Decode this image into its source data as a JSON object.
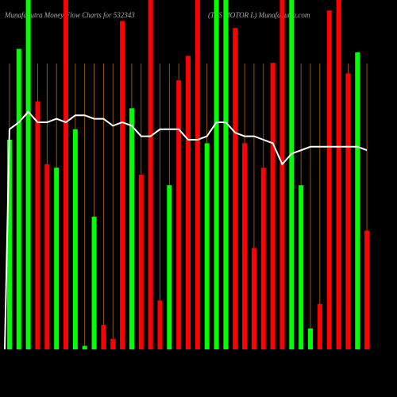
{
  "chart_data": {
    "type": "bar",
    "title": "MunafaSutra  Money Flow  Charts for 532343",
    "subtitle": "(TVS MOTOR L) MunafaSutra.com",
    "ylim": [
      0,
      100
    ],
    "values": [
      60,
      86,
      100,
      71,
      53,
      52,
      100,
      63,
      1,
      38,
      7,
      3,
      94,
      69,
      50,
      100,
      14,
      47,
      77,
      84,
      100,
      59,
      100,
      100,
      92,
      59,
      29,
      52,
      82,
      100,
      100,
      47,
      6,
      13,
      97,
      100,
      79,
      85,
      34
    ],
    "colors": [
      "#00ff00",
      "#00ff00",
      "#00ff00",
      "#ff0000",
      "#ff0000",
      "#00ff00",
      "#ff0000",
      "#00ff00",
      "#00ff00",
      "#00ff00",
      "#ff0000",
      "#ff0000",
      "#ff0000",
      "#00ff00",
      "#ff0000",
      "#ff0000",
      "#ff0000",
      "#00ff00",
      "#ff0000",
      "#ff0000",
      "#ff0000",
      "#00ff00",
      "#00ff00",
      "#00ff00",
      "#ff0000",
      "#ff0000",
      "#ff0000",
      "#ff0000",
      "#ff0000",
      "#ff0000",
      "#00ff00",
      "#00ff00",
      "#00ff00",
      "#ff0000",
      "#ff0000",
      "#ff0000",
      "#ff0000",
      "#00ff00",
      "#ff0000"
    ],
    "line": {
      "color": "#ffffff",
      "values": [
        63,
        65,
        68,
        65,
        65,
        66,
        65,
        67,
        67,
        66,
        66,
        64,
        65,
        64,
        61,
        61,
        63,
        63,
        63,
        60,
        60,
        61,
        65,
        65,
        62,
        61,
        61,
        60,
        59,
        53,
        56,
        57,
        58,
        58,
        58,
        58,
        58,
        58,
        57
      ]
    }
  }
}
